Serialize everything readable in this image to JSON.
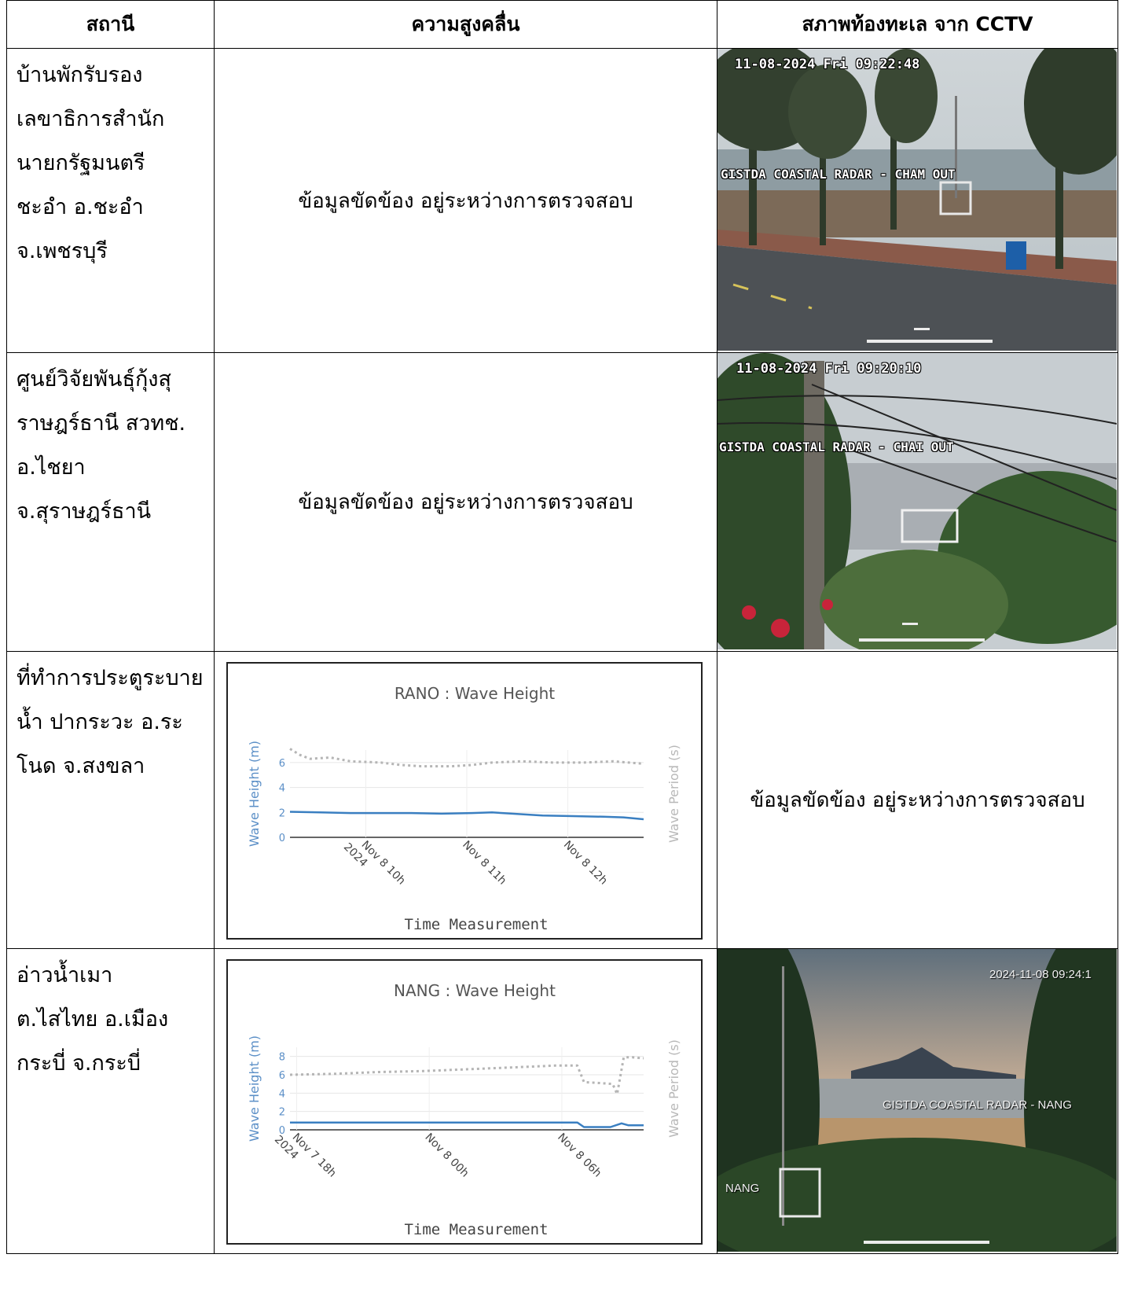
{
  "headers": [
    "สถานี",
    "ความสูงคลื่น",
    "สภาพท้องทะเล จาก CCTV"
  ],
  "rows": [
    {
      "station_lines": [
        "บ้านพักรับรอง",
        "เลขาธิการสำนัก",
        "นายกรัฐมนตรี",
        "ชะอำ อ.ชะอำ",
        "จ.เพชรบุรี"
      ],
      "wave_text": "ข้อมูลขัดข้อง อยู่ระหว่างการตรวจสอบ",
      "cctv": {
        "stamp": "11-08-2024 Fri 09:22:48",
        "label": "GISTDA COASTAL RADAR - CHAM OUT",
        "scene": "beach-road"
      }
    },
    {
      "station_lines": [
        "ศูนย์วิจัยพันธุ์กุ้งสุ",
        "ราษฎร์ธานี สวทช.",
        "อ.ไชยา",
        "จ.สุราษฎร์ธานี"
      ],
      "wave_text": "ข้อมูลขัดข้อง อยู่ระหว่างการตรวจสอบ",
      "cctv": {
        "stamp": "11-08-2024 Fri 09:20:10",
        "label": "GISTDA COASTAL RADAR - CHAI OUT",
        "scene": "garden-pole"
      }
    },
    {
      "station_lines": [
        "ที่ทำการประตูระบาย",
        "น้ำ ปากระวะ อ.ระ",
        "โนด จ.สงขลา"
      ],
      "cctv_text": "ข้อมูลขัดข้อง อยู่ระหว่างการตรวจสอบ"
    },
    {
      "station_lines": [
        "อ่าวน้ำเมา",
        "ต.ไสไทย อ.เมือง",
        "กระบี่ จ.กระบี่"
      ],
      "cctv": {
        "stamp": "2024-11-08 09:24:1",
        "label": "GISTDA COASTAL RADAR - NANG",
        "label2": "NANG",
        "scene": "bay-sunset"
      }
    }
  ],
  "chart_data": [
    {
      "type": "line",
      "title": "RANO : Wave Height",
      "xlabel": "Time Measurement",
      "ylabel": "Wave Height (m)",
      "y2label": "Wave Period (s)",
      "ylim": [
        0,
        7
      ],
      "yticks": [
        0,
        2,
        4,
        6
      ],
      "xticks": [
        {
          "x": 0.75,
          "lines": [
            "Nov 8 10h",
            "2024"
          ]
        },
        {
          "x": 1.75,
          "lines": [
            "Nov 8 11h"
          ]
        },
        {
          "x": 2.75,
          "lines": [
            "Nov 8 12h"
          ]
        }
      ],
      "xlim": [
        0,
        3.5
      ],
      "series": [
        {
          "role": "height",
          "color": "#3a7fc1",
          "style": "solid",
          "x": [
            0,
            0.3,
            0.6,
            0.9,
            1.2,
            1.5,
            1.8,
            2.0,
            2.2,
            2.5,
            2.8,
            3.1,
            3.3,
            3.5
          ],
          "y": [
            2.05,
            2.0,
            1.95,
            1.95,
            1.95,
            1.9,
            1.95,
            2.0,
            1.9,
            1.75,
            1.7,
            1.65,
            1.6,
            1.45
          ]
        },
        {
          "role": "period",
          "color": "#b5b5b5",
          "style": "dotted",
          "x": [
            0,
            0.1,
            0.2,
            0.4,
            0.6,
            0.9,
            1.1,
            1.3,
            1.6,
            1.8,
            2.0,
            2.3,
            2.6,
            2.9,
            3.2,
            3.5
          ],
          "y": [
            7.1,
            6.6,
            6.3,
            6.4,
            6.1,
            6.0,
            5.8,
            5.7,
            5.7,
            5.8,
            6.0,
            6.1,
            6.0,
            6.0,
            6.1,
            5.9
          ]
        }
      ]
    },
    {
      "type": "line",
      "title": "NANG : Wave Height",
      "xlabel": "Time Measurement",
      "ylabel": "Wave Height (m)",
      "y2label": "Wave Period (s)",
      "ylim": [
        0,
        9
      ],
      "yticks": [
        0,
        2,
        4,
        6,
        8
      ],
      "xticks": [
        {
          "x": 0.3,
          "lines": [
            "Nov 7 18h",
            "2024"
          ]
        },
        {
          "x": 6.3,
          "lines": [
            "Nov 8 00h"
          ]
        },
        {
          "x": 12.3,
          "lines": [
            "Nov 8 06h"
          ]
        }
      ],
      "xlim": [
        0,
        16
      ],
      "series": [
        {
          "role": "height",
          "color": "#3a7fc1",
          "style": "solid",
          "x": [
            0,
            4,
            8,
            12,
            13,
            13.3,
            14.5,
            15,
            15.3,
            16
          ],
          "y": [
            0.8,
            0.8,
            0.8,
            0.8,
            0.8,
            0.3,
            0.3,
            0.7,
            0.5,
            0.5
          ]
        },
        {
          "role": "period",
          "color": "#b5b5b5",
          "style": "dotted",
          "x": [
            0,
            2,
            4,
            6,
            8,
            10,
            12,
            13,
            13.3,
            14,
            14.6,
            14.8,
            15.1,
            15.5,
            16
          ],
          "y": [
            6.0,
            6.1,
            6.3,
            6.4,
            6.6,
            6.8,
            7.0,
            7.0,
            5.2,
            5.1,
            5.0,
            3.9,
            7.9,
            7.9,
            7.8
          ]
        }
      ]
    }
  ],
  "colors": {
    "height_line": "#3a7fc1",
    "period_line": "#b5b5b5",
    "border": "#000000"
  }
}
